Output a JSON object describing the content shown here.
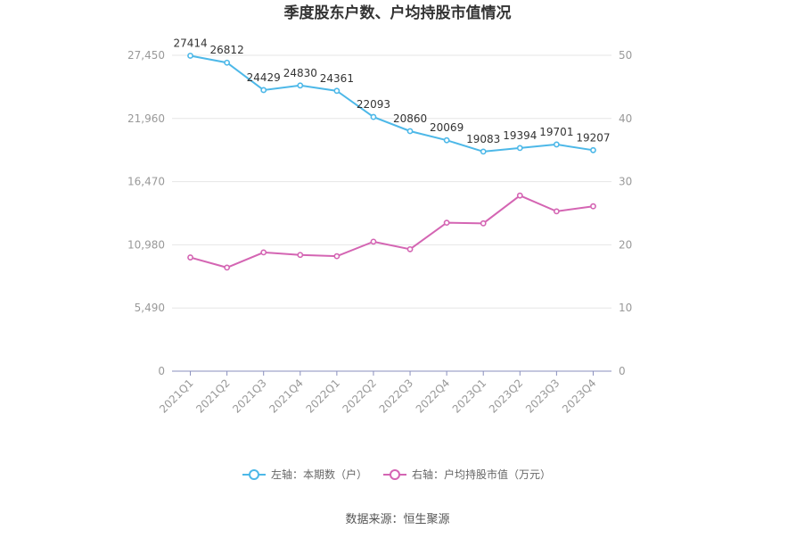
{
  "chart_data": {
    "type": "line",
    "title": "季度股东户数、户均持股市值情况",
    "categories": [
      "2021Q1",
      "2021Q2",
      "2021Q3",
      "2021Q4",
      "2022Q1",
      "2022Q2",
      "2022Q3",
      "2022Q4",
      "2023Q1",
      "2023Q2",
      "2023Q3",
      "2023Q4"
    ],
    "left_axis": {
      "ticks": [
        "0",
        "5,490",
        "10,980",
        "16,470",
        "21,960",
        "27,450"
      ],
      "min": 0,
      "max": 27450
    },
    "right_axis": {
      "ticks": [
        "0",
        "10",
        "20",
        "30",
        "40",
        "50"
      ],
      "min": 0,
      "max": 50
    },
    "series": [
      {
        "name": "左轴：本期数（户）",
        "axis": "left",
        "color": "#4db8e8",
        "values": [
          27414,
          26812,
          24429,
          24830,
          24361,
          22093,
          20860,
          20069,
          19083,
          19394,
          19701,
          19207
        ],
        "labels": [
          "27414",
          "26812",
          "24429",
          "24830",
          "24361",
          "22093",
          "20860",
          "20069",
          "19083",
          "19394",
          "19701",
          "19207"
        ]
      },
      {
        "name": "右轴：户均持股市值（万元）",
        "axis": "right",
        "color": "#d465b3",
        "values": [
          18.0,
          16.4,
          18.8,
          18.4,
          18.2,
          20.5,
          19.3,
          23.5,
          23.4,
          27.8,
          25.3,
          26.1
        ]
      }
    ],
    "grid": true,
    "legend_position": "bottom"
  },
  "source": "数据来源：恒生聚源"
}
